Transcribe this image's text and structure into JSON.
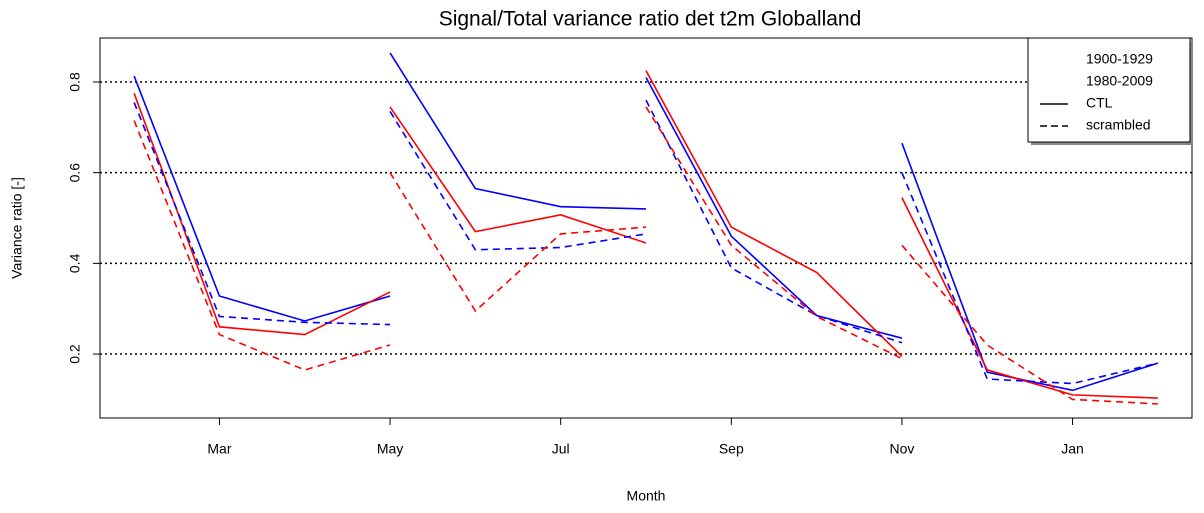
{
  "chart_data": {
    "type": "line",
    "title": "Signal/Total variance ratio det  t2m Globalland",
    "x_label": "Month",
    "y_label": "Variance ratio [-]",
    "x": [
      2,
      3,
      4,
      5,
      null,
      5,
      6,
      7,
      8,
      null,
      8,
      9,
      10,
      11,
      null,
      11,
      12,
      13,
      14
    ],
    "xlim": [
      1.6,
      14.4
    ],
    "xticks": [
      {
        "value": 3,
        "label": "Mar"
      },
      {
        "value": 5,
        "label": "May"
      },
      {
        "value": 7,
        "label": "Jul"
      },
      {
        "value": 9,
        "label": "Sep"
      },
      {
        "value": 11,
        "label": "Nov"
      },
      {
        "value": 13,
        "label": "Jan"
      }
    ],
    "ylim": [
      0.059,
      0.897
    ],
    "yticks": [
      0.2,
      0.4,
      0.6,
      0.8
    ],
    "grid": true,
    "series": [
      {
        "color": "#0000ff",
        "dashed": false,
        "values": [
          0.813,
          0.328,
          0.273,
          0.328,
          null,
          0.864,
          0.565,
          0.525,
          0.52,
          null,
          0.81,
          0.46,
          0.285,
          0.235,
          null,
          0.665,
          0.16,
          0.12,
          0.18
        ]
      },
      {
        "color": "#ff0000",
        "dashed": false,
        "values": [
          0.775,
          0.26,
          0.243,
          0.337,
          null,
          0.745,
          0.47,
          0.507,
          0.445,
          null,
          0.825,
          0.48,
          0.38,
          0.195,
          null,
          0.545,
          0.165,
          0.11,
          0.103
        ]
      },
      {
        "color": "#0000ff",
        "dashed": true,
        "values": [
          0.755,
          0.283,
          0.27,
          0.265,
          null,
          0.735,
          0.43,
          0.435,
          0.465,
          null,
          0.76,
          0.39,
          0.285,
          0.225,
          null,
          0.6,
          0.145,
          0.135,
          0.18
        ]
      },
      {
        "color": "#ff0000",
        "dashed": true,
        "values": [
          0.715,
          0.243,
          0.165,
          0.22,
          null,
          0.6,
          0.295,
          0.465,
          0.48,
          null,
          0.745,
          0.44,
          0.283,
          0.19,
          null,
          0.44,
          0.22,
          0.1,
          0.09
        ]
      }
    ],
    "legend": {
      "position": "top-right",
      "entries": [
        {
          "label": "1900-1929",
          "color": "#0000ff"
        },
        {
          "label": "1980-2009",
          "color": "#ff0000"
        },
        {
          "label": "CTL",
          "dashed": false
        },
        {
          "label": "scrambled",
          "dashed": true
        }
      ]
    }
  }
}
